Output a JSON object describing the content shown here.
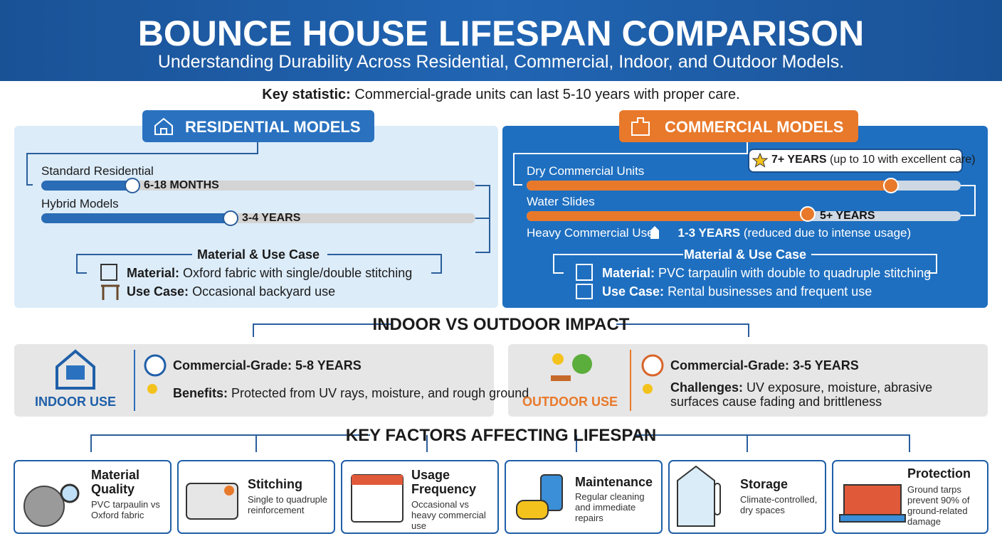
{
  "header": {
    "title": "BOUNCE HOUSE LIFESPAN COMPARISON",
    "subtitle": "Understanding Durability Across Residential, Commercial, Indoor, and Outdoor Models."
  },
  "key_stat": {
    "label": "Key statistic:",
    "text": "Commercial-grade units can last 5-10 years with proper care."
  },
  "residential": {
    "title": "RESIDENTIAL MODELS",
    "items": [
      {
        "name": "Standard Residential",
        "duration": "6-18 MONTHS"
      },
      {
        "name": "Hybrid Models",
        "duration": "3-4 YEARS"
      }
    ],
    "section_title": "Material & Use Case",
    "material_label": "Material:",
    "material": "Oxford fabric with single/double stitching",
    "use_label": "Use Case:",
    "use": "Occasional backyard use"
  },
  "commercial": {
    "title": "COMMERCIAL MODELS",
    "callout_bold": "7+ YEARS",
    "callout": "(up to 10 with excellent care)",
    "items": [
      {
        "name": "Dry Commercial Units"
      },
      {
        "name": "Water Slides",
        "duration": "5+ YEARS"
      },
      {
        "name": "Heavy Commercial Use",
        "duration": "1-3 YEARS",
        "note": "(reduced due to intense usage)"
      }
    ],
    "section_title": "Material & Use Case",
    "material_label": "Material:",
    "material": "PVC tarpaulin with double to quadruple stitching",
    "use_label": "Use Case:",
    "use": "Rental businesses and frequent use"
  },
  "impact": {
    "title": "INDOOR VS OUTDOOR IMPACT",
    "indoor": {
      "label": "INDOOR USE",
      "grade": "Commercial-Grade: 5-8 YEARS",
      "key": "Benefits:",
      "text": "Protected from UV rays, moisture, and rough ground"
    },
    "outdoor": {
      "label": "OUTDOOR USE",
      "grade": "Commercial-Grade: 3-5 YEARS",
      "key": "Challenges:",
      "text": "UV exposure, moisture, abrasive surfaces cause fading and brittleness"
    }
  },
  "factors": {
    "title": "KEY FACTORS AFFECTING LIFESPAN",
    "items": [
      {
        "title": "Material Quality",
        "text": "PVC tarpaulin vs Oxford fabric"
      },
      {
        "title": "Stitching",
        "text": "Single to quadruple reinforcement"
      },
      {
        "title": "Usage Frequency",
        "text": "Occasional vs heavy commercial use"
      },
      {
        "title": "Maintenance",
        "text": "Regular cleaning and immediate repairs"
      },
      {
        "title": "Storage",
        "text": "Climate-controlled, dry spaces"
      },
      {
        "title": "Protection",
        "text": "Ground tarps prevent 90% of ground-related damage"
      }
    ]
  }
}
